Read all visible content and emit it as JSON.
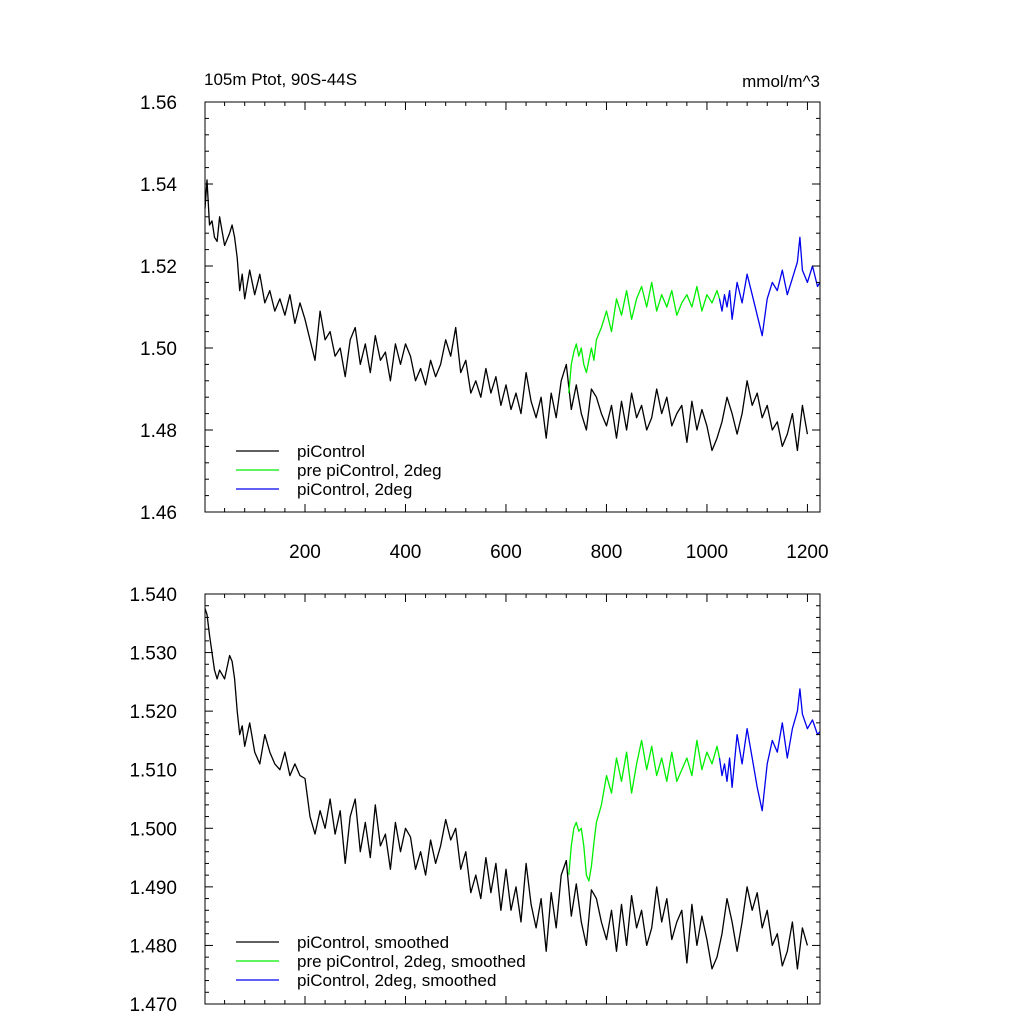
{
  "chart_data": [
    {
      "type": "line",
      "title_left": "105m Ptot, 90S-44S",
      "title_right": "mmol/m^3",
      "xlim": [
        1,
        1225
      ],
      "ylim": [
        1.46,
        1.56
      ],
      "x_ticks": [
        200,
        400,
        600,
        800,
        1000,
        1200
      ],
      "y_ticks": [
        "1.46",
        "1.48",
        "1.50",
        "1.52",
        "1.54",
        "1.56"
      ],
      "legend_position": "bottom-left",
      "series": [
        {
          "name": "piControl",
          "color": "#000000",
          "x": [
            1,
            5,
            10,
            15,
            20,
            25,
            30,
            40,
            50,
            55,
            60,
            65,
            70,
            75,
            80,
            90,
            100,
            110,
            120,
            130,
            140,
            150,
            160,
            170,
            180,
            190,
            200,
            210,
            220,
            230,
            240,
            250,
            260,
            270,
            280,
            290,
            300,
            310,
            320,
            330,
            340,
            350,
            360,
            370,
            380,
            390,
            400,
            410,
            420,
            430,
            440,
            450,
            460,
            470,
            480,
            490,
            500,
            510,
            520,
            530,
            540,
            550,
            560,
            570,
            580,
            590,
            600,
            610,
            620,
            630,
            640,
            650,
            660,
            670,
            680,
            690,
            700,
            710,
            720,
            730,
            740,
            750,
            760,
            770,
            780,
            790,
            800,
            810,
            820,
            830,
            840,
            850,
            860,
            870,
            880,
            890,
            900,
            910,
            920,
            930,
            940,
            950,
            960,
            970,
            980,
            990,
            1000,
            1010,
            1020,
            1030,
            1040,
            1050,
            1060,
            1070,
            1080,
            1090,
            1100,
            1110,
            1120,
            1130,
            1140,
            1150,
            1160,
            1170,
            1180,
            1190,
            1200
          ],
          "y": [
            1.534,
            1.541,
            1.53,
            1.531,
            1.527,
            1.526,
            1.532,
            1.525,
            1.528,
            1.53,
            1.527,
            1.522,
            1.514,
            1.518,
            1.512,
            1.519,
            1.513,
            1.518,
            1.511,
            1.514,
            1.509,
            1.512,
            1.508,
            1.513,
            1.506,
            1.511,
            1.507,
            1.502,
            1.497,
            1.509,
            1.502,
            1.504,
            1.498,
            1.5,
            1.493,
            1.502,
            1.505,
            1.496,
            1.501,
            1.494,
            1.503,
            1.497,
            1.499,
            1.492,
            1.501,
            1.496,
            1.501,
            1.498,
            1.492,
            1.495,
            1.491,
            1.497,
            1.493,
            1.496,
            1.502,
            1.498,
            1.505,
            1.494,
            1.497,
            1.489,
            1.492,
            1.488,
            1.495,
            1.489,
            1.493,
            1.486,
            1.491,
            1.485,
            1.489,
            1.484,
            1.494,
            1.487,
            1.483,
            1.488,
            1.478,
            1.489,
            1.483,
            1.492,
            1.496,
            1.485,
            1.491,
            1.484,
            1.48,
            1.49,
            1.488,
            1.484,
            1.481,
            1.486,
            1.478,
            1.487,
            1.48,
            1.489,
            1.483,
            1.486,
            1.48,
            1.483,
            1.49,
            1.484,
            1.488,
            1.481,
            1.484,
            1.486,
            1.477,
            1.487,
            1.48,
            1.485,
            1.481,
            1.475,
            1.478,
            1.482,
            1.488,
            1.484,
            1.479,
            1.484,
            1.492,
            1.486,
            1.489,
            1.483,
            1.486,
            1.48,
            1.482,
            1.476,
            1.479,
            1.484,
            1.475,
            1.486,
            1.479
          ]
        },
        {
          "name": "pre piControl, 2deg",
          "color": "#00ee00",
          "x": [
            725,
            730,
            735,
            740,
            745,
            750,
            755,
            760,
            765,
            770,
            775,
            780,
            790,
            800,
            810,
            820,
            830,
            840,
            850,
            860,
            870,
            880,
            890,
            900,
            910,
            920,
            930,
            940,
            950,
            960,
            970,
            980,
            990,
            1000,
            1010,
            1020,
            1025
          ],
          "y": [
            1.489,
            1.496,
            1.499,
            1.501,
            1.498,
            1.5,
            1.496,
            1.494,
            1.497,
            1.5,
            1.497,
            1.502,
            1.505,
            1.509,
            1.504,
            1.512,
            1.508,
            1.514,
            1.507,
            1.512,
            1.515,
            1.51,
            1.516,
            1.509,
            1.513,
            1.51,
            1.514,
            1.508,
            1.511,
            1.513,
            1.51,
            1.515,
            1.509,
            1.513,
            1.511,
            1.514,
            1.512
          ]
        },
        {
          "name": "piControl, 2deg",
          "color": "#0000ee",
          "x": [
            1025,
            1030,
            1035,
            1040,
            1045,
            1050,
            1060,
            1070,
            1080,
            1090,
            1100,
            1110,
            1120,
            1130,
            1140,
            1150,
            1160,
            1170,
            1180,
            1185,
            1190,
            1200,
            1210,
            1220,
            1225
          ],
          "y": [
            1.512,
            1.509,
            1.513,
            1.51,
            1.514,
            1.507,
            1.516,
            1.511,
            1.518,
            1.513,
            1.508,
            1.503,
            1.512,
            1.516,
            1.514,
            1.519,
            1.513,
            1.517,
            1.521,
            1.527,
            1.519,
            1.516,
            1.52,
            1.515,
            1.516
          ]
        }
      ]
    },
    {
      "type": "line",
      "xlim": [
        1,
        1225
      ],
      "ylim": [
        1.47,
        1.54
      ],
      "y_ticks": [
        "1.470",
        "1.480",
        "1.490",
        "1.500",
        "1.510",
        "1.520",
        "1.530",
        "1.540"
      ],
      "legend_position": "bottom-left",
      "series": [
        {
          "name": "piControl, smoothed",
          "color": "#000000",
          "x": [
            1,
            5,
            10,
            15,
            20,
            25,
            30,
            40,
            45,
            50,
            55,
            60,
            65,
            70,
            75,
            80,
            85,
            90,
            100,
            110,
            120,
            130,
            140,
            150,
            160,
            170,
            180,
            190,
            200,
            210,
            220,
            230,
            240,
            250,
            260,
            270,
            280,
            290,
            300,
            310,
            320,
            330,
            340,
            350,
            360,
            370,
            380,
            390,
            400,
            410,
            420,
            430,
            440,
            450,
            460,
            470,
            480,
            490,
            500,
            510,
            520,
            530,
            540,
            550,
            560,
            570,
            580,
            590,
            600,
            610,
            620,
            630,
            640,
            650,
            660,
            670,
            680,
            690,
            700,
            710,
            720,
            730,
            740,
            750,
            760,
            770,
            780,
            790,
            800,
            810,
            820,
            830,
            840,
            850,
            860,
            870,
            880,
            890,
            900,
            910,
            920,
            930,
            940,
            950,
            960,
            970,
            980,
            990,
            1000,
            1010,
            1020,
            1030,
            1040,
            1050,
            1060,
            1070,
            1080,
            1090,
            1100,
            1110,
            1120,
            1130,
            1140,
            1150,
            1160,
            1170,
            1180,
            1190,
            1200
          ],
          "y": [
            1.5375,
            1.5365,
            1.533,
            1.53,
            1.527,
            1.5255,
            1.527,
            1.5255,
            1.5275,
            1.5295,
            1.5285,
            1.5255,
            1.52,
            1.516,
            1.5175,
            1.514,
            1.516,
            1.518,
            1.513,
            1.511,
            1.516,
            1.513,
            1.511,
            1.51,
            1.513,
            1.509,
            1.511,
            1.509,
            1.5085,
            1.502,
            1.499,
            1.503,
            1.5,
            1.505,
            1.499,
            1.503,
            1.494,
            1.502,
            1.505,
            1.496,
            1.501,
            1.495,
            1.504,
            1.497,
            1.499,
            1.493,
            1.501,
            1.496,
            1.5,
            1.4985,
            1.493,
            1.496,
            1.492,
            1.498,
            1.494,
            1.497,
            1.5015,
            1.498,
            1.5,
            1.493,
            1.496,
            1.489,
            1.492,
            1.488,
            1.495,
            1.489,
            1.494,
            1.486,
            1.493,
            1.486,
            1.49,
            1.484,
            1.494,
            1.487,
            1.483,
            1.488,
            1.479,
            1.489,
            1.483,
            1.492,
            1.4945,
            1.485,
            1.4905,
            1.484,
            1.48,
            1.4895,
            1.488,
            1.484,
            1.481,
            1.486,
            1.479,
            1.487,
            1.48,
            1.4885,
            1.483,
            1.486,
            1.48,
            1.483,
            1.49,
            1.484,
            1.488,
            1.481,
            1.484,
            1.486,
            1.477,
            1.487,
            1.48,
            1.485,
            1.481,
            1.476,
            1.478,
            1.482,
            1.488,
            1.484,
            1.479,
            1.484,
            1.49,
            1.486,
            1.489,
            1.483,
            1.486,
            1.48,
            1.482,
            1.4765,
            1.479,
            1.484,
            1.476,
            1.483,
            1.48
          ]
        },
        {
          "name": "pre piControl, 2deg, smoothed",
          "color": "#00ee00",
          "x": [
            725,
            730,
            735,
            740,
            745,
            750,
            755,
            760,
            765,
            770,
            775,
            780,
            790,
            800,
            810,
            820,
            830,
            840,
            850,
            860,
            870,
            880,
            890,
            900,
            910,
            920,
            930,
            940,
            950,
            960,
            970,
            980,
            990,
            1000,
            1010,
            1020,
            1025
          ],
          "y": [
            1.492,
            1.497,
            1.5,
            1.501,
            1.4995,
            1.5,
            1.497,
            1.492,
            1.491,
            1.4935,
            1.4975,
            1.501,
            1.504,
            1.509,
            1.506,
            1.512,
            1.508,
            1.513,
            1.506,
            1.511,
            1.515,
            1.51,
            1.514,
            1.509,
            1.512,
            1.508,
            1.513,
            1.508,
            1.51,
            1.512,
            1.509,
            1.515,
            1.51,
            1.513,
            1.511,
            1.514,
            1.512
          ]
        },
        {
          "name": "piControl, 2deg, smoothed",
          "color": "#0000ee",
          "x": [
            1025,
            1030,
            1035,
            1040,
            1045,
            1050,
            1060,
            1070,
            1080,
            1090,
            1100,
            1110,
            1120,
            1130,
            1140,
            1150,
            1160,
            1170,
            1180,
            1185,
            1190,
            1200,
            1210,
            1220,
            1225
          ],
          "y": [
            1.512,
            1.509,
            1.511,
            1.508,
            1.512,
            1.507,
            1.516,
            1.511,
            1.517,
            1.512,
            1.507,
            1.503,
            1.511,
            1.515,
            1.513,
            1.518,
            1.512,
            1.517,
            1.52,
            1.5238,
            1.5195,
            1.517,
            1.5185,
            1.516,
            1.5165
          ]
        }
      ]
    }
  ]
}
